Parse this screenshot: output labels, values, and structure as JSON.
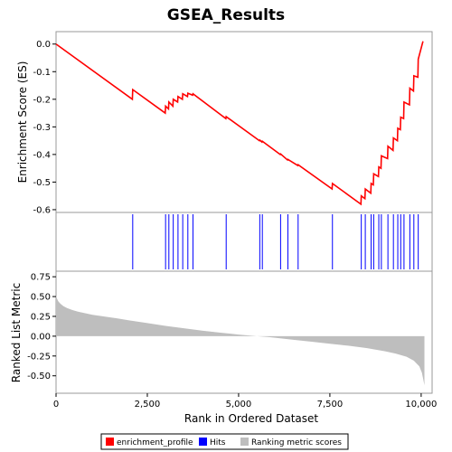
{
  "chart_data": [
    {
      "type": "line",
      "title": "GSEA_Results",
      "ylabel": "Enrichment Score (ES)",
      "xlim": [
        0,
        10300
      ],
      "ylim": [
        -0.61,
        0.045
      ],
      "yticks": [
        0.0,
        -0.1,
        -0.2,
        -0.3,
        -0.4,
        -0.5,
        -0.6
      ],
      "yticklabels": [
        "0.0",
        "-0.1",
        "-0.2",
        "-0.3",
        "-0.4",
        "-0.5",
        "-0.6"
      ],
      "series": [
        {
          "name": "enrichment_profile",
          "color": "#ff0000",
          "x": [
            0,
            2090,
            2100,
            2990,
            3000,
            3080,
            3090,
            3200,
            3210,
            3330,
            3340,
            3460,
            3470,
            3600,
            3610,
            3740,
            3750,
            4650,
            4660,
            5570,
            5580,
            5640,
            5650,
            6140,
            6150,
            6340,
            6350,
            6620,
            6630,
            7560,
            7570,
            8350,
            8360,
            8460,
            8470,
            8620,
            8630,
            8690,
            8700,
            8830,
            8840,
            8900,
            8910,
            9080,
            9090,
            9230,
            9240,
            9350,
            9360,
            9430,
            9440,
            9520,
            9530,
            9680,
            9690,
            9790,
            9800,
            9910,
            9920,
            10050
          ],
          "y": [
            0.0,
            -0.2,
            -0.165,
            -0.25,
            -0.225,
            -0.235,
            -0.21,
            -0.225,
            -0.2,
            -0.21,
            -0.19,
            -0.2,
            -0.18,
            -0.19,
            -0.178,
            -0.185,
            -0.18,
            -0.27,
            -0.263,
            -0.35,
            -0.348,
            -0.355,
            -0.352,
            -0.4,
            -0.398,
            -0.42,
            -0.418,
            -0.44,
            -0.437,
            -0.525,
            -0.505,
            -0.58,
            -0.55,
            -0.56,
            -0.525,
            -0.54,
            -0.505,
            -0.51,
            -0.47,
            -0.48,
            -0.445,
            -0.45,
            -0.405,
            -0.415,
            -0.37,
            -0.385,
            -0.34,
            -0.35,
            -0.305,
            -0.31,
            -0.265,
            -0.27,
            -0.21,
            -0.22,
            -0.16,
            -0.17,
            -0.115,
            -0.12,
            -0.055,
            0.01
          ]
        }
      ]
    },
    {
      "type": "scatter",
      "name": "hits",
      "series": [
        {
          "name": "Hits",
          "color": "#0000ff",
          "x": [
            2100,
            3000,
            3090,
            3210,
            3340,
            3470,
            3610,
            3750,
            4660,
            5580,
            5650,
            6150,
            6350,
            6630,
            7570,
            8360,
            8470,
            8630,
            8700,
            8840,
            8910,
            9090,
            9240,
            9360,
            9440,
            9530,
            9690,
            9800,
            9920
          ]
        }
      ]
    },
    {
      "type": "area",
      "ylabel": "Ranked List Metric",
      "xlabel": "Rank in Ordered Dataset",
      "xlim": [
        0,
        10300
      ],
      "ylim": [
        -0.72,
        0.82
      ],
      "xticks": [
        0,
        2500,
        5000,
        7500,
        10000
      ],
      "xticklabels": [
        "0",
        "2,500",
        "5,000",
        "7,500",
        "10,000"
      ],
      "yticks": [
        0.75,
        0.5,
        0.25,
        0.0,
        -0.25,
        -0.5
      ],
      "yticklabels": [
        "0.75",
        "0.50",
        "0.25",
        "0.00",
        "-0.25",
        "-0.50"
      ],
      "series": [
        {
          "name": "Ranking metric scores",
          "color": "#bebebe",
          "x": [
            0,
            20,
            60,
            120,
            200,
            300,
            450,
            600,
            800,
            1000,
            1300,
            1600,
            2000,
            2500,
            3000,
            3500,
            4000,
            4500,
            5000,
            5500,
            5800,
            6000,
            6500,
            7000,
            7500,
            8000,
            8500,
            9000,
            9300,
            9600,
            9800,
            9950,
            10020,
            10060,
            10090
          ],
          "y": [
            0.52,
            0.48,
            0.44,
            0.41,
            0.38,
            0.355,
            0.33,
            0.31,
            0.29,
            0.27,
            0.25,
            0.23,
            0.2,
            0.165,
            0.13,
            0.1,
            0.07,
            0.045,
            0.02,
            0.0,
            -0.01,
            -0.02,
            -0.045,
            -0.07,
            -0.095,
            -0.12,
            -0.15,
            -0.19,
            -0.22,
            -0.26,
            -0.31,
            -0.38,
            -0.46,
            -0.55,
            -0.62
          ]
        }
      ]
    }
  ],
  "legend": {
    "placement": "bottom",
    "items": [
      {
        "label": "enrichment_profile",
        "color": "#ff0000"
      },
      {
        "label": "Hits",
        "color": "#0000ff"
      },
      {
        "label": "Ranking metric scores",
        "color": "#bebebe"
      }
    ]
  }
}
